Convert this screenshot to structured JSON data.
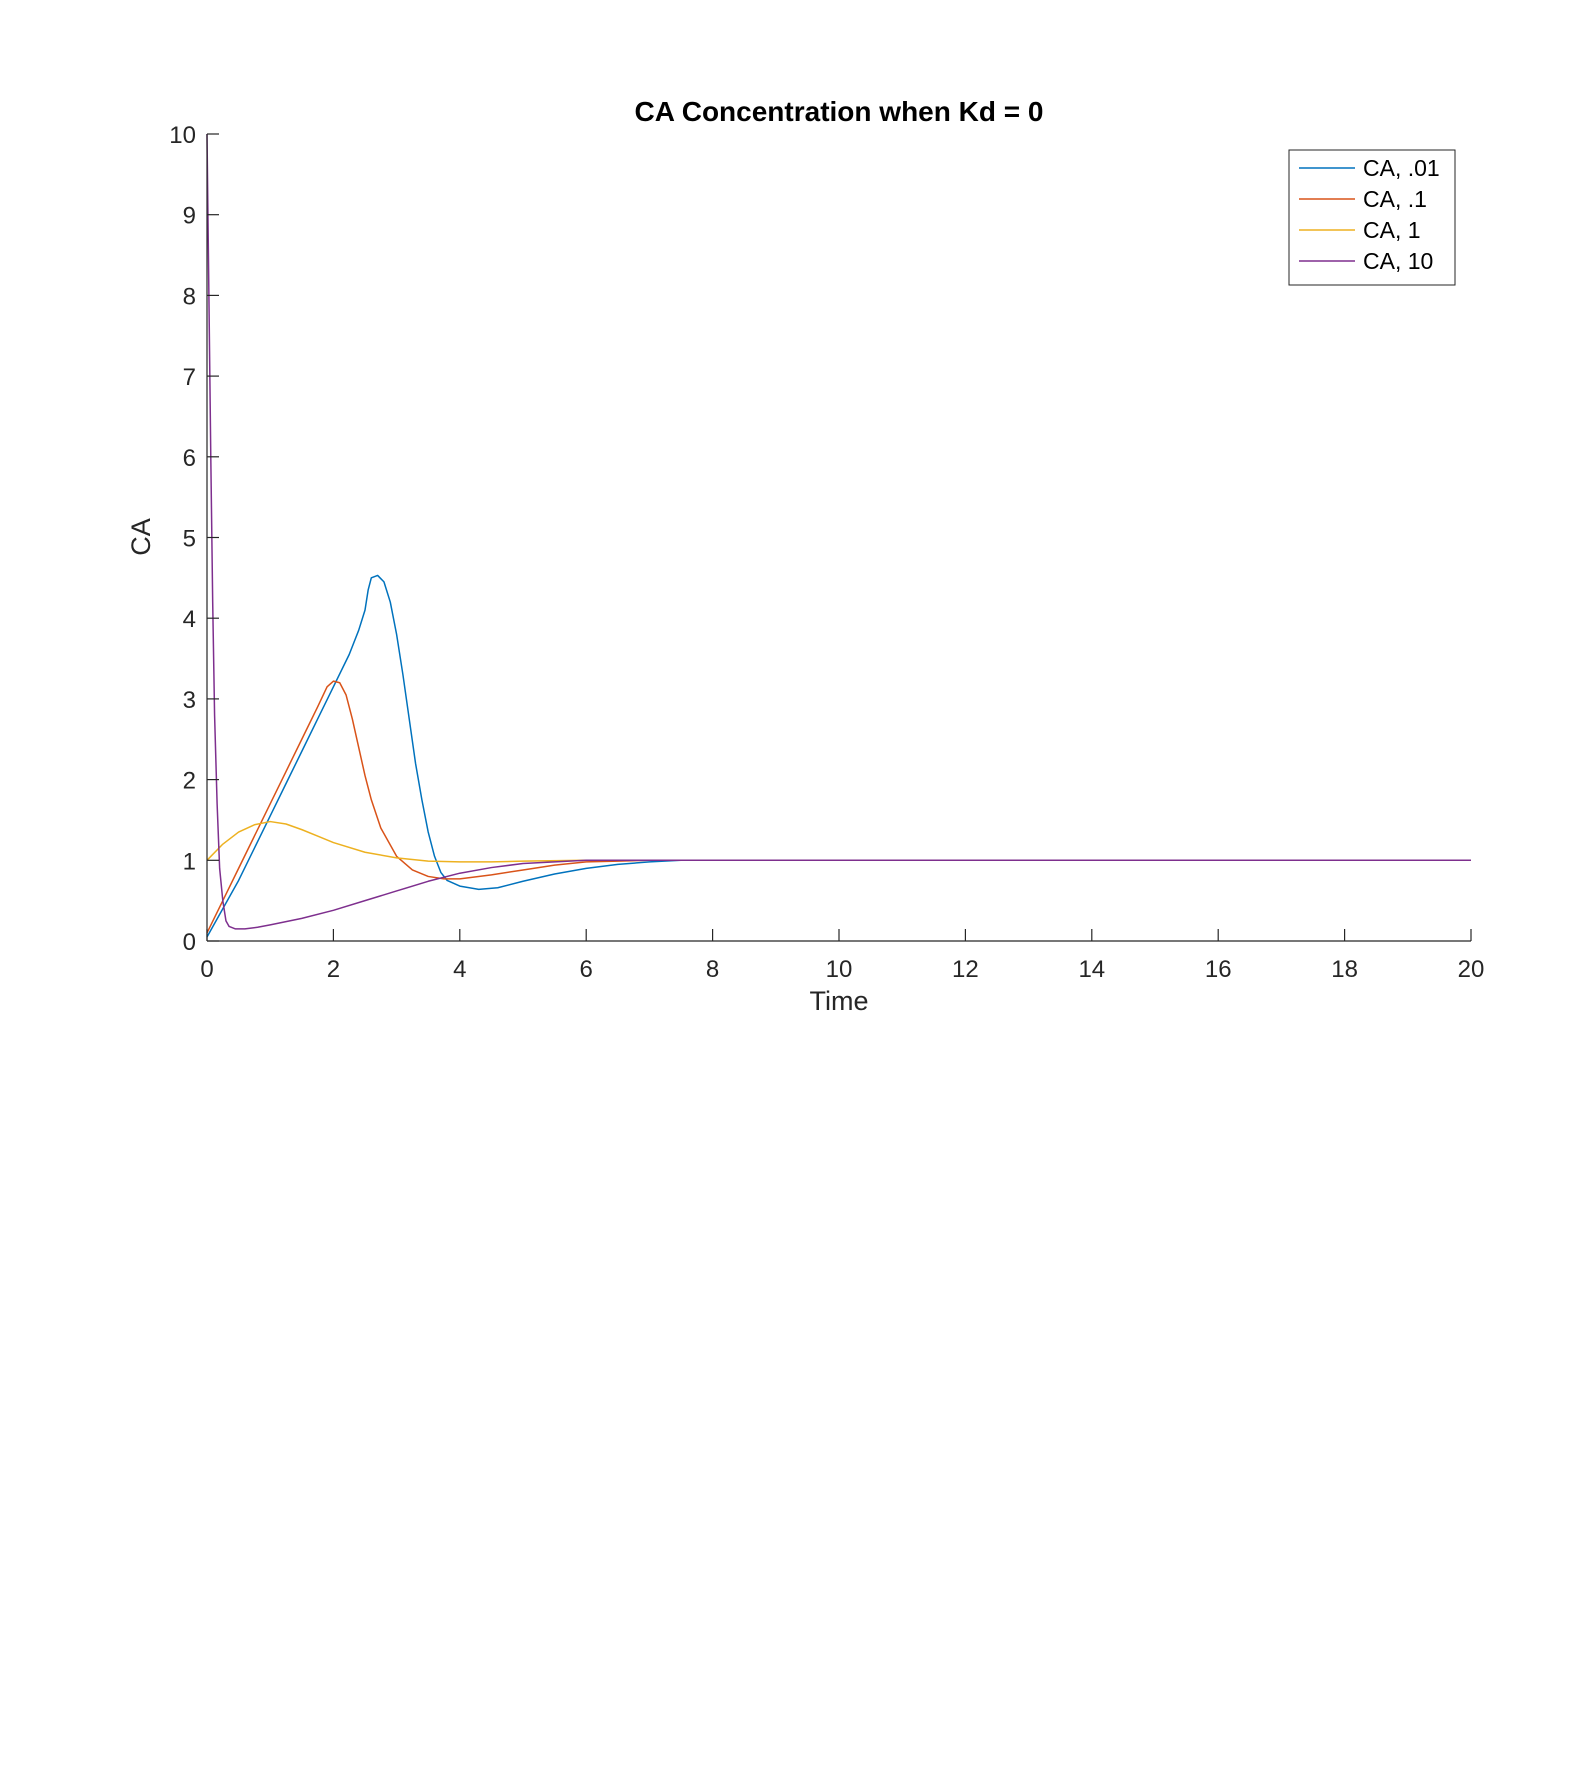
{
  "chart_data": {
    "type": "line",
    "title": "CA Concentration when Kd = 0",
    "xlabel": "Time",
    "ylabel": "CA",
    "xlim": [
      0,
      20
    ],
    "ylim": [
      0,
      10
    ],
    "xticks": [
      "0",
      "2",
      "4",
      "6",
      "8",
      "10",
      "12",
      "14",
      "16",
      "18",
      "20"
    ],
    "yticks": [
      "0",
      "1",
      "2",
      "3",
      "4",
      "5",
      "6",
      "7",
      "8",
      "9",
      "10"
    ],
    "grid": false,
    "legend_position": "top-right",
    "series": [
      {
        "name": "CA, .01",
        "color": "#0072BD",
        "points": [
          [
            0,
            0.05
          ],
          [
            0.25,
            0.4
          ],
          [
            0.5,
            0.75
          ],
          [
            0.75,
            1.15
          ],
          [
            1,
            1.55
          ],
          [
            1.25,
            1.95
          ],
          [
            1.5,
            2.35
          ],
          [
            1.75,
            2.75
          ],
          [
            2,
            3.15
          ],
          [
            2.25,
            3.55
          ],
          [
            2.4,
            3.85
          ],
          [
            2.5,
            4.1
          ],
          [
            2.55,
            4.35
          ],
          [
            2.6,
            4.5
          ],
          [
            2.7,
            4.53
          ],
          [
            2.8,
            4.45
          ],
          [
            2.9,
            4.2
          ],
          [
            3,
            3.8
          ],
          [
            3.1,
            3.3
          ],
          [
            3.2,
            2.75
          ],
          [
            3.3,
            2.2
          ],
          [
            3.4,
            1.75
          ],
          [
            3.5,
            1.35
          ],
          [
            3.6,
            1.05
          ],
          [
            3.7,
            0.85
          ],
          [
            3.8,
            0.75
          ],
          [
            4,
            0.68
          ],
          [
            4.3,
            0.64
          ],
          [
            4.6,
            0.66
          ],
          [
            5,
            0.74
          ],
          [
            5.5,
            0.83
          ],
          [
            6,
            0.9
          ],
          [
            6.5,
            0.95
          ],
          [
            7,
            0.98
          ],
          [
            7.5,
            1
          ],
          [
            8,
            1
          ],
          [
            9,
            1
          ],
          [
            10,
            1
          ],
          [
            12,
            1
          ],
          [
            14,
            1
          ],
          [
            16,
            1
          ],
          [
            18,
            1
          ],
          [
            20,
            1
          ]
        ]
      },
      {
        "name": "CA, .1",
        "color": "#D95319",
        "points": [
          [
            0,
            0.1
          ],
          [
            0.25,
            0.5
          ],
          [
            0.5,
            0.9
          ],
          [
            0.75,
            1.3
          ],
          [
            1,
            1.7
          ],
          [
            1.25,
            2.1
          ],
          [
            1.5,
            2.5
          ],
          [
            1.75,
            2.9
          ],
          [
            1.9,
            3.15
          ],
          [
            2,
            3.22
          ],
          [
            2.1,
            3.2
          ],
          [
            2.2,
            3.05
          ],
          [
            2.3,
            2.75
          ],
          [
            2.4,
            2.4
          ],
          [
            2.5,
            2.05
          ],
          [
            2.6,
            1.75
          ],
          [
            2.75,
            1.4
          ],
          [
            3,
            1.05
          ],
          [
            3.25,
            0.88
          ],
          [
            3.5,
            0.8
          ],
          [
            3.75,
            0.77
          ],
          [
            4,
            0.77
          ],
          [
            4.5,
            0.82
          ],
          [
            5,
            0.88
          ],
          [
            5.5,
            0.94
          ],
          [
            6,
            0.98
          ],
          [
            6.5,
            0.99
          ],
          [
            7,
            1
          ],
          [
            8,
            1
          ],
          [
            10,
            1
          ],
          [
            12,
            1
          ],
          [
            14,
            1
          ],
          [
            16,
            1
          ],
          [
            18,
            1
          ],
          [
            20,
            1
          ]
        ]
      },
      {
        "name": "CA, 1",
        "color": "#EDB120",
        "points": [
          [
            0,
            1
          ],
          [
            0.25,
            1.2
          ],
          [
            0.5,
            1.35
          ],
          [
            0.75,
            1.44
          ],
          [
            1,
            1.48
          ],
          [
            1.25,
            1.45
          ],
          [
            1.5,
            1.38
          ],
          [
            1.75,
            1.3
          ],
          [
            2,
            1.22
          ],
          [
            2.5,
            1.1
          ],
          [
            3,
            1.03
          ],
          [
            3.5,
            0.99
          ],
          [
            4,
            0.98
          ],
          [
            4.5,
            0.98
          ],
          [
            5,
            0.99
          ],
          [
            6,
            1
          ],
          [
            8,
            1
          ],
          [
            10,
            1
          ],
          [
            12,
            1
          ],
          [
            14,
            1
          ],
          [
            16,
            1
          ],
          [
            18,
            1
          ],
          [
            20,
            1
          ]
        ]
      },
      {
        "name": "CA, 10",
        "color": "#7E2F8E",
        "points": [
          [
            0,
            10
          ],
          [
            0.03,
            8
          ],
          [
            0.06,
            6
          ],
          [
            0.09,
            4.2
          ],
          [
            0.12,
            2.8
          ],
          [
            0.16,
            1.7
          ],
          [
            0.2,
            0.9
          ],
          [
            0.25,
            0.5
          ],
          [
            0.3,
            0.25
          ],
          [
            0.35,
            0.18
          ],
          [
            0.45,
            0.15
          ],
          [
            0.6,
            0.15
          ],
          [
            0.8,
            0.17
          ],
          [
            1,
            0.2
          ],
          [
            1.5,
            0.28
          ],
          [
            2,
            0.38
          ],
          [
            2.5,
            0.5
          ],
          [
            3,
            0.62
          ],
          [
            3.5,
            0.74
          ],
          [
            4,
            0.84
          ],
          [
            4.5,
            0.91
          ],
          [
            5,
            0.96
          ],
          [
            5.5,
            0.98
          ],
          [
            6,
            1
          ],
          [
            7,
            1
          ],
          [
            8,
            1
          ],
          [
            10,
            1
          ],
          [
            12,
            1
          ],
          [
            14,
            1
          ],
          [
            16,
            1
          ],
          [
            18,
            1
          ],
          [
            20,
            1
          ]
        ]
      }
    ]
  }
}
